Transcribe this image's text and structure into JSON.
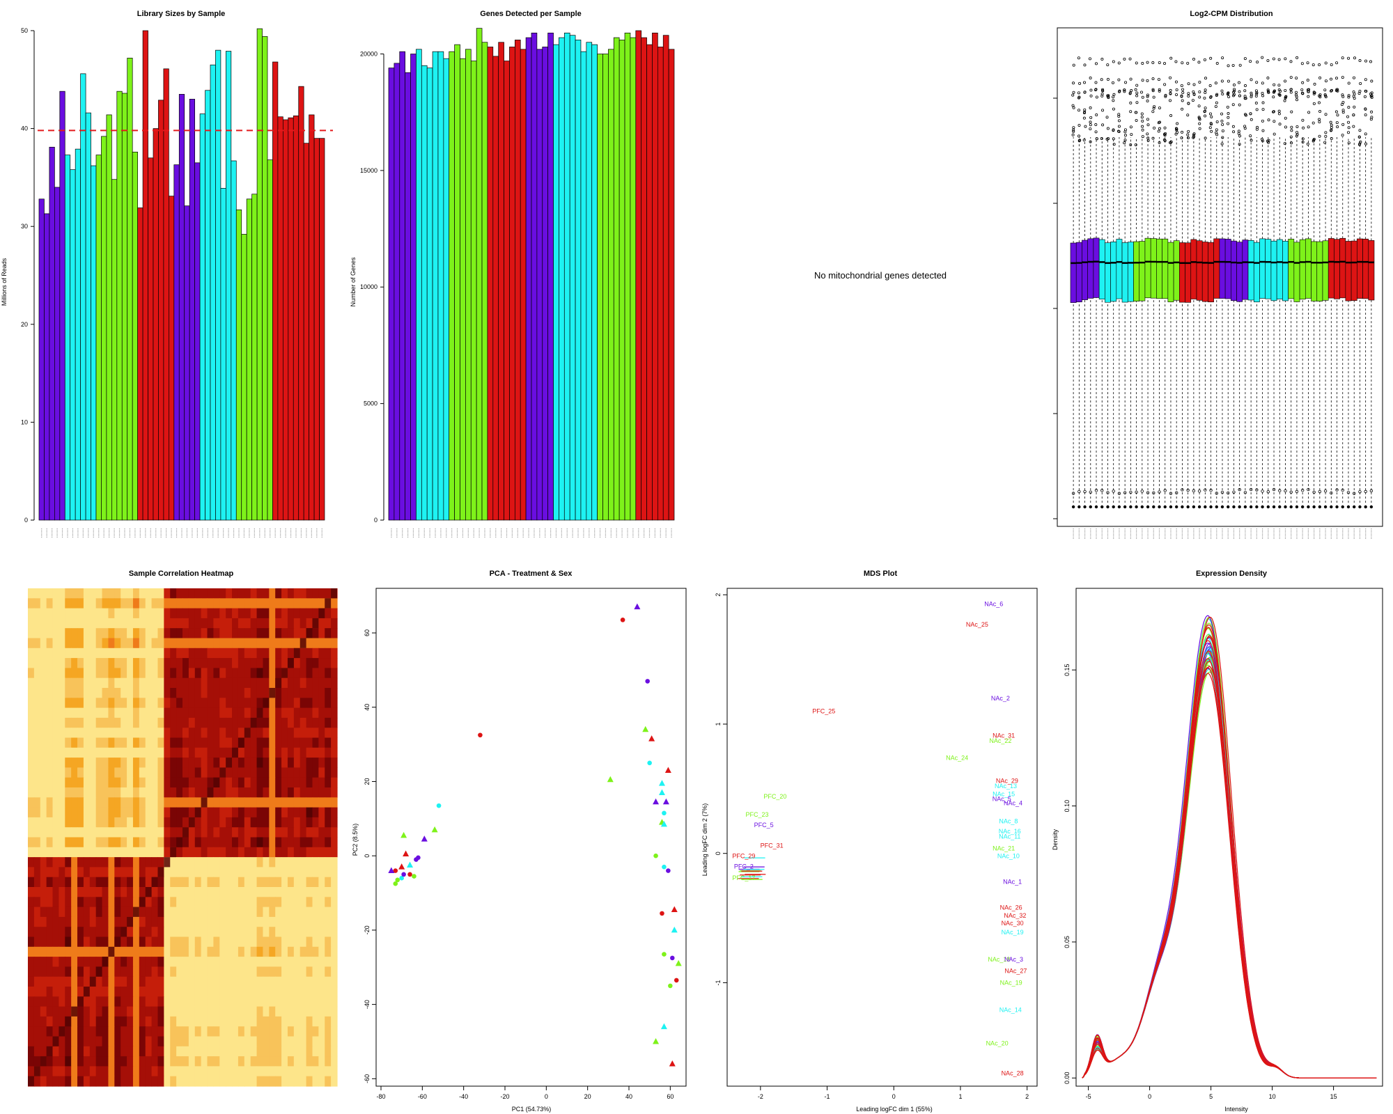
{
  "palette": {
    "purple": "#6a0ee0",
    "cyan": "#1ef2f2",
    "green": "#7ef21a",
    "red": "#dd1414",
    "refline": "#e41a1c"
  },
  "chart_data": [
    {
      "id": "library",
      "type": "bar",
      "title": "Library Sizes by Sample",
      "ylabel": "Millions of Reads",
      "ylim": [
        0,
        50
      ],
      "yticks": [
        0,
        10,
        20,
        30,
        40,
        50
      ],
      "ref_line": 39.8,
      "color_groups": [
        "purple",
        "purple",
        "purple",
        "purple",
        "purple",
        "cyan",
        "cyan",
        "cyan",
        "cyan",
        "cyan",
        "cyan",
        "green",
        "green",
        "green",
        "green",
        "green",
        "green",
        "green",
        "green",
        "red",
        "red",
        "red",
        "red",
        "red",
        "red",
        "red",
        "purple",
        "purple",
        "purple",
        "purple",
        "purple",
        "cyan",
        "cyan",
        "cyan",
        "cyan",
        "cyan",
        "cyan",
        "cyan",
        "green",
        "green",
        "green",
        "green",
        "green",
        "green",
        "green",
        "red",
        "red",
        "red",
        "red",
        "red",
        "red",
        "red",
        "red",
        "red",
        "red"
      ],
      "values": [
        32.8,
        31.3,
        38.1,
        34.0,
        43.8,
        37.3,
        35.8,
        37.9,
        45.6,
        41.6,
        36.2,
        37.3,
        39.2,
        41.4,
        34.8,
        43.8,
        43.6,
        47.2,
        37.6,
        31.9,
        50.0,
        37.0,
        40.0,
        42.9,
        46.1,
        33.1,
        36.3,
        43.5,
        32.1,
        43.0,
        36.5,
        41.5,
        43.9,
        46.5,
        48.0,
        33.9,
        47.9,
        36.7,
        31.7,
        29.2,
        32.8,
        33.3,
        50.2,
        49.4,
        36.8,
        46.8,
        41.2,
        40.9,
        41.1,
        41.3,
        44.3,
        38.5,
        41.4,
        39.0,
        39.0
      ]
    },
    {
      "id": "genes",
      "type": "bar",
      "title": "Genes Detected per Sample",
      "ylabel": "Number of Genes",
      "ylim": [
        0,
        21000
      ],
      "yticks": [
        0,
        5000,
        10000,
        15000,
        20000
      ],
      "color_groups": [
        "purple",
        "purple",
        "purple",
        "purple",
        "purple",
        "cyan",
        "cyan",
        "cyan",
        "cyan",
        "cyan",
        "cyan",
        "green",
        "green",
        "green",
        "green",
        "green",
        "green",
        "green",
        "red",
        "red",
        "red",
        "red",
        "red",
        "red",
        "red",
        "purple",
        "purple",
        "purple",
        "purple",
        "purple",
        "cyan",
        "cyan",
        "cyan",
        "cyan",
        "cyan",
        "cyan",
        "cyan",
        "cyan",
        "green",
        "green",
        "green",
        "green",
        "green",
        "green",
        "green",
        "red",
        "red",
        "red",
        "red",
        "red",
        "red",
        "red"
      ],
      "values": [
        19400,
        19600,
        20100,
        19200,
        20000,
        20200,
        19500,
        19400,
        20100,
        20100,
        19800,
        20100,
        20400,
        19800,
        20200,
        19700,
        21100,
        20500,
        20300,
        19900,
        20500,
        19700,
        20300,
        20600,
        20200,
        20700,
        20900,
        20200,
        20300,
        20900,
        20400,
        20700,
        20900,
        20800,
        20600,
        20100,
        20500,
        20400,
        20000,
        20000,
        20200,
        20700,
        20600,
        20900,
        20700,
        21000,
        20700,
        20400,
        20900,
        20300,
        20800,
        20200
      ]
    },
    {
      "id": "mito",
      "type": "table",
      "title": "",
      "message": "No mitochondrial genes detected"
    },
    {
      "id": "logcpm",
      "type": "box",
      "title": "Log2-CPM Distribution",
      "color_groups": [
        "purple",
        "purple",
        "purple",
        "purple",
        "purple",
        "cyan",
        "cyan",
        "cyan",
        "cyan",
        "cyan",
        "cyan",
        "green",
        "green",
        "green",
        "green",
        "green",
        "green",
        "green",
        "green",
        "red",
        "red",
        "red",
        "red",
        "red",
        "red",
        "red",
        "purple",
        "purple",
        "purple",
        "purple",
        "purple",
        "cyan",
        "cyan",
        "cyan",
        "cyan",
        "cyan",
        "cyan",
        "cyan",
        "green",
        "green",
        "green",
        "green",
        "green",
        "green",
        "green",
        "red",
        "red",
        "red",
        "red",
        "red",
        "red",
        "red",
        "red"
      ],
      "ylim": [
        -8,
        16
      ],
      "median": 4.9,
      "q1": 3.0,
      "q3": 6.0,
      "whisker_low": -7.2,
      "whisker_high": 11.2,
      "outlier_bands": [
        12.2,
        13.4,
        14.0,
        15.0
      ]
    },
    {
      "id": "heatmap",
      "type": "heatmap",
      "title": "Sample Correlation Heatmap",
      "n": 50,
      "block_split": 22,
      "colors": [
        "#fff5c9",
        "#fde58a",
        "#f8c35a",
        "#f5a623",
        "#ef7b1a",
        "#e0420e",
        "#c51e0a",
        "#a50f07",
        "#7a0505",
        "#560303"
      ]
    },
    {
      "id": "pca",
      "type": "scatter",
      "title": "PCA - Treatment & Sex",
      "xlabel": "PC1 (54.73%)",
      "ylabel": "PC2 (8.5%)",
      "xlim": [
        -80,
        70
      ],
      "ylim": [
        -62,
        72
      ],
      "xticks": [
        -80,
        -60,
        -40,
        -20,
        0,
        20,
        40,
        60
      ],
      "yticks": [
        -60,
        -40,
        -20,
        0,
        20,
        40,
        60
      ],
      "points": [
        {
          "x": 44,
          "y": 67,
          "c": "purple",
          "s": "tri"
        },
        {
          "x": 37,
          "y": 63.5,
          "c": "red",
          "s": "circ"
        },
        {
          "x": 49,
          "y": 47,
          "c": "purple",
          "s": "circ"
        },
        {
          "x": -32,
          "y": 32.5,
          "c": "red",
          "s": "circ"
        },
        {
          "x": 48,
          "y": 34,
          "c": "green",
          "s": "tri"
        },
        {
          "x": 51,
          "y": 31.5,
          "c": "red",
          "s": "tri"
        },
        {
          "x": 50,
          "y": 25,
          "c": "cyan",
          "s": "circ"
        },
        {
          "x": 59,
          "y": 23,
          "c": "red",
          "s": "tri"
        },
        {
          "x": 31,
          "y": 20.5,
          "c": "green",
          "s": "tri"
        },
        {
          "x": 56,
          "y": 19.5,
          "c": "cyan",
          "s": "tri"
        },
        {
          "x": 56,
          "y": 17,
          "c": "cyan",
          "s": "tri"
        },
        {
          "x": 53,
          "y": 14.5,
          "c": "purple",
          "s": "tri"
        },
        {
          "x": 58,
          "y": 14.5,
          "c": "purple",
          "s": "tri"
        },
        {
          "x": 57,
          "y": 11.5,
          "c": "cyan",
          "s": "circ"
        },
        {
          "x": -52,
          "y": 13.5,
          "c": "cyan",
          "s": "circ"
        },
        {
          "x": 56,
          "y": 9,
          "c": "green",
          "s": "tri"
        },
        {
          "x": 57,
          "y": 8.5,
          "c": "cyan",
          "s": "tri"
        },
        {
          "x": -54,
          "y": 7,
          "c": "green",
          "s": "tri"
        },
        {
          "x": -69,
          "y": 5.5,
          "c": "green",
          "s": "tri"
        },
        {
          "x": -59,
          "y": 4.5,
          "c": "purple",
          "s": "tri"
        },
        {
          "x": 53,
          "y": 0,
          "c": "green",
          "s": "circ"
        },
        {
          "x": -63,
          "y": -1,
          "c": "purple",
          "s": "circ"
        },
        {
          "x": -62,
          "y": -0.5,
          "c": "purple",
          "s": "circ"
        },
        {
          "x": -68,
          "y": 0.5,
          "c": "red",
          "s": "tri"
        },
        {
          "x": -73,
          "y": -4,
          "c": "red",
          "s": "circ"
        },
        {
          "x": -75,
          "y": -4,
          "c": "purple",
          "s": "tri"
        },
        {
          "x": -70,
          "y": -3,
          "c": "red",
          "s": "tri"
        },
        {
          "x": -70,
          "y": -6,
          "c": "cyan",
          "s": "circ"
        },
        {
          "x": -69,
          "y": -5,
          "c": "purple",
          "s": "circ"
        },
        {
          "x": -72,
          "y": -6.5,
          "c": "green",
          "s": "circ"
        },
        {
          "x": -66,
          "y": -5,
          "c": "red",
          "s": "circ"
        },
        {
          "x": -64,
          "y": -5.5,
          "c": "green",
          "s": "circ"
        },
        {
          "x": -73,
          "y": -7.5,
          "c": "green",
          "s": "circ"
        },
        {
          "x": -66,
          "y": -2.5,
          "c": "cyan",
          "s": "tri"
        },
        {
          "x": 57,
          "y": -3,
          "c": "cyan",
          "s": "circ"
        },
        {
          "x": 59,
          "y": -4,
          "c": "purple",
          "s": "circ"
        },
        {
          "x": 56,
          "y": -15.5,
          "c": "red",
          "s": "circ"
        },
        {
          "x": 62,
          "y": -14.5,
          "c": "red",
          "s": "tri"
        },
        {
          "x": 62,
          "y": -20,
          "c": "cyan",
          "s": "tri"
        },
        {
          "x": 57,
          "y": -26.5,
          "c": "green",
          "s": "circ"
        },
        {
          "x": 61,
          "y": -27.5,
          "c": "purple",
          "s": "circ"
        },
        {
          "x": 64,
          "y": -29,
          "c": "green",
          "s": "tri"
        },
        {
          "x": 63,
          "y": -33.5,
          "c": "red",
          "s": "circ"
        },
        {
          "x": 60,
          "y": -35,
          "c": "green",
          "s": "circ"
        },
        {
          "x": 57,
          "y": -46,
          "c": "cyan",
          "s": "tri"
        },
        {
          "x": 53,
          "y": -50,
          "c": "green",
          "s": "tri"
        },
        {
          "x": 61,
          "y": -56,
          "c": "red",
          "s": "tri"
        }
      ]
    },
    {
      "id": "mds",
      "type": "scatter",
      "title": "MDS Plot",
      "xlabel": "Leading logFC dim 1 (55%)",
      "ylabel": "Leading logFC dim 2 (7%)",
      "xlim": [
        -2.5,
        2.15
      ],
      "ylim": [
        -1.8,
        2.05
      ],
      "xticks": [
        -2,
        -1,
        0,
        1,
        2
      ],
      "yticks": [
        -1,
        0,
        1,
        2
      ],
      "labels": [
        {
          "t": "NAc_6",
          "x": 1.5,
          "y": 1.93,
          "c": "purple"
        },
        {
          "t": "NAc_25",
          "x": 1.25,
          "y": 1.77,
          "c": "red"
        },
        {
          "t": "NAc_2",
          "x": 1.6,
          "y": 1.2,
          "c": "purple"
        },
        {
          "t": "PFC_25",
          "x": -1.05,
          "y": 1.1,
          "c": "red"
        },
        {
          "t": "NAc_31",
          "x": 1.65,
          "y": 0.91,
          "c": "red"
        },
        {
          "t": "NAc_22",
          "x": 1.6,
          "y": 0.87,
          "c": "green"
        },
        {
          "t": "NAc_24",
          "x": 0.95,
          "y": 0.74,
          "c": "green"
        },
        {
          "t": "NAc_29",
          "x": 1.7,
          "y": 0.56,
          "c": "red"
        },
        {
          "t": "NAc_13",
          "x": 1.68,
          "y": 0.52,
          "c": "cyan"
        },
        {
          "t": "NAc_15",
          "x": 1.65,
          "y": 0.46,
          "c": "cyan"
        },
        {
          "t": "NAc_5",
          "x": 1.62,
          "y": 0.42,
          "c": "purple"
        },
        {
          "t": "NAc_4",
          "x": 1.79,
          "y": 0.39,
          "c": "purple"
        },
        {
          "t": "PFC_20",
          "x": -1.78,
          "y": 0.44,
          "c": "green"
        },
        {
          "t": "PFC_23",
          "x": -2.05,
          "y": 0.3,
          "c": "green"
        },
        {
          "t": "PFC_5",
          "x": -1.95,
          "y": 0.22,
          "c": "purple"
        },
        {
          "t": "NAc_8",
          "x": 1.72,
          "y": 0.25,
          "c": "cyan"
        },
        {
          "t": "NAc_16",
          "x": 1.74,
          "y": 0.17,
          "c": "cyan"
        },
        {
          "t": "NAc_11",
          "x": 1.74,
          "y": 0.13,
          "c": "cyan"
        },
        {
          "t": "PFC_31",
          "x": -1.83,
          "y": 0.06,
          "c": "red"
        },
        {
          "t": "NAc_21",
          "x": 1.65,
          "y": 0.04,
          "c": "green"
        },
        {
          "t": "NAc_10",
          "x": 1.72,
          "y": -0.02,
          "c": "cyan"
        },
        {
          "t": "PFC_29",
          "x": -2.25,
          "y": -0.02,
          "c": "red"
        },
        {
          "t": "PFC_2",
          "x": -2.25,
          "y": -0.1,
          "c": "purple"
        },
        {
          "t": "PFC_17",
          "x": -2.25,
          "y": -0.19,
          "c": "green"
        },
        {
          "t": "NAc_1",
          "x": 1.78,
          "y": -0.22,
          "c": "purple"
        },
        {
          "t": "NAc_26",
          "x": 1.76,
          "y": -0.42,
          "c": "red"
        },
        {
          "t": "NAc_32",
          "x": 1.82,
          "y": -0.48,
          "c": "red"
        },
        {
          "t": "NAc_30",
          "x": 1.78,
          "y": -0.54,
          "c": "red"
        },
        {
          "t": "NAc_19",
          "x": 1.78,
          "y": -0.61,
          "c": "cyan"
        },
        {
          "t": "NAc_18",
          "x": 1.58,
          "y": -0.82,
          "c": "green"
        },
        {
          "t": "NAc_3",
          "x": 1.8,
          "y": -0.82,
          "c": "purple"
        },
        {
          "t": "NAc_27",
          "x": 1.83,
          "y": -0.91,
          "c": "red"
        },
        {
          "t": "NAc_19",
          "x": 1.76,
          "y": -1.0,
          "c": "green"
        },
        {
          "t": "NAc_14",
          "x": 1.75,
          "y": -1.21,
          "c": "cyan"
        },
        {
          "t": "NAc_20",
          "x": 1.55,
          "y": -1.47,
          "c": "green"
        },
        {
          "t": "NAc_28",
          "x": 1.78,
          "y": -1.7,
          "c": "red"
        }
      ]
    },
    {
      "id": "density",
      "type": "line",
      "title": "Expression Density",
      "xlabel": "Intensity",
      "ylabel": "Density",
      "xlim": [
        -6,
        19
      ],
      "ylim": [
        -0.003,
        0.18
      ],
      "xticks": [
        -5,
        0,
        5,
        10,
        15
      ],
      "yticks": [
        0.0,
        0.05,
        0.1,
        0.15
      ],
      "ytick_labels": [
        "0.00",
        "0.05",
        "0.10",
        "0.15"
      ],
      "curve_colors": [
        "purple",
        "cyan",
        "green",
        "red"
      ],
      "n_curves": 48
    }
  ]
}
